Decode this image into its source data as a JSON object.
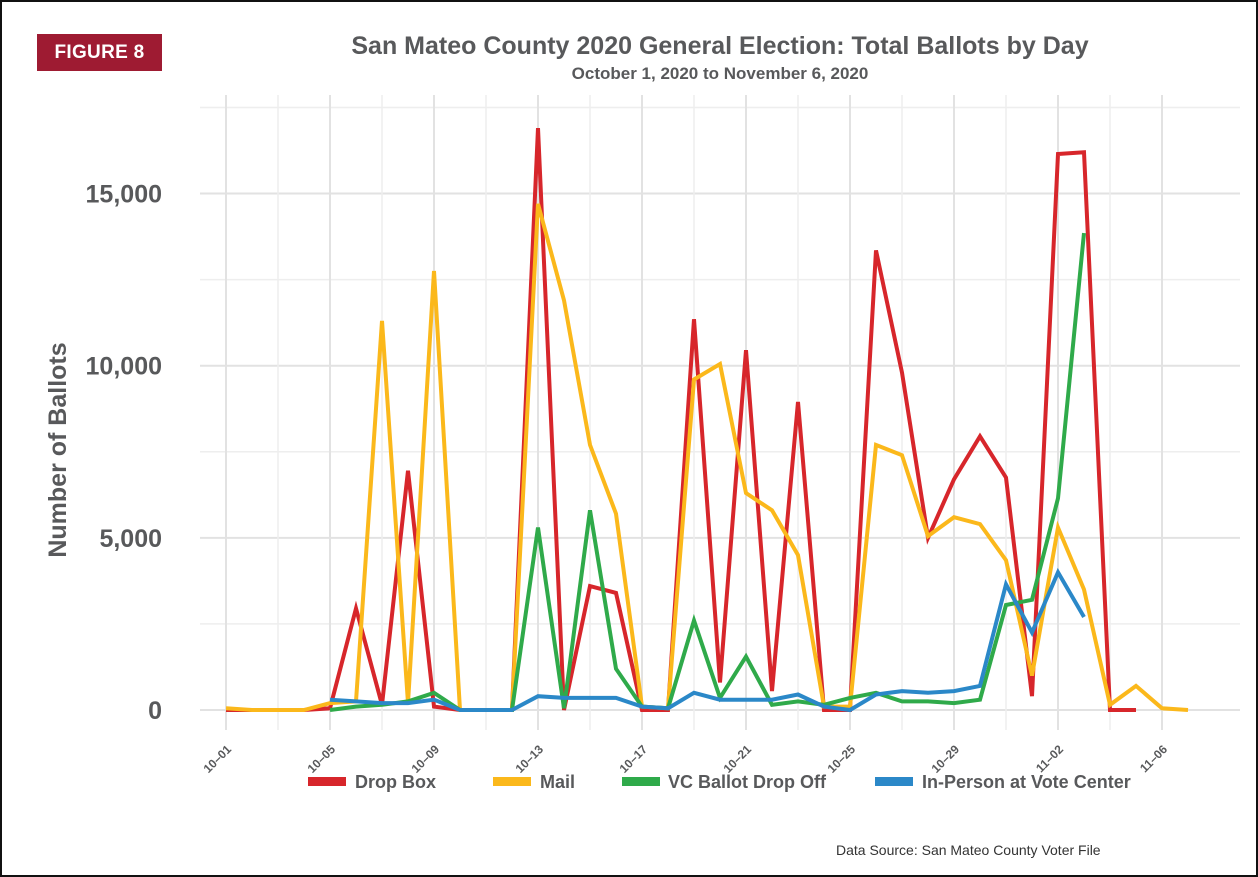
{
  "badge": "FIGURE 8",
  "source": "Data Source: San Mateo County Voter File",
  "chart_data": {
    "type": "line",
    "title": "San Mateo County 2020 General Election: Total Ballots by Day",
    "subtitle": "October 1, 2020 to November 6, 2020",
    "xlabel": "",
    "ylabel": "Number of Ballots",
    "ylim": [
      0,
      17500
    ],
    "yticks": [
      0,
      5000,
      10000,
      15000
    ],
    "ytick_labels": [
      "0",
      "5,000",
      "10,000",
      "15,000"
    ],
    "grid": true,
    "legend_position": "bottom",
    "x": [
      "10-01",
      "10-02",
      "10-03",
      "10-04",
      "10-05",
      "10-06",
      "10-07",
      "10-08",
      "10-09",
      "10-10",
      "10-11",
      "10-12",
      "10-13",
      "10-14",
      "10-15",
      "10-16",
      "10-17",
      "10-18",
      "10-19",
      "10-20",
      "10-21",
      "10-22",
      "10-23",
      "10-24",
      "10-25",
      "10-26",
      "10-27",
      "10-28",
      "10-29",
      "10-30",
      "10-31",
      "11-01",
      "11-02",
      "11-03",
      "11-04",
      "11-05",
      "11-06",
      "11-07"
    ],
    "xtick_indices": [
      0,
      4,
      8,
      12,
      16,
      20,
      24,
      28,
      32,
      36
    ],
    "xtick_labels": [
      "10–01",
      "10–05",
      "10–09",
      "10–13",
      "10–17",
      "10–21",
      "10–25",
      "10–29",
      "11–02",
      "11–06"
    ],
    "series": [
      {
        "name": "Drop Box",
        "color": "#d7262b",
        "values": [
          0,
          0,
          0,
          0,
          50,
          2950,
          150,
          6950,
          100,
          0,
          0,
          0,
          16900,
          0,
          3600,
          3400,
          0,
          0,
          11350,
          800,
          10450,
          550,
          8950,
          0,
          0,
          13350,
          9800,
          5000,
          6700,
          7950,
          6750,
          400,
          16150,
          16200,
          0,
          0,
          null,
          null
        ]
      },
      {
        "name": "Mail",
        "color": "#fbb81b",
        "values": [
          50,
          0,
          0,
          0,
          200,
          250,
          11300,
          200,
          12750,
          0,
          0,
          0,
          14700,
          11900,
          7700,
          5700,
          100,
          50,
          9600,
          10050,
          6300,
          5800,
          4500,
          100,
          100,
          7700,
          7400,
          5050,
          5600,
          5400,
          4350,
          1000,
          5300,
          3500,
          150,
          700,
          50,
          0
        ]
      },
      {
        "name": "VC Ballot Drop Off",
        "color": "#2faa4a",
        "values": [
          null,
          null,
          null,
          null,
          0,
          100,
          150,
          250,
          500,
          0,
          0,
          0,
          5300,
          50,
          5800,
          1200,
          100,
          50,
          2600,
          350,
          1550,
          150,
          250,
          150,
          350,
          500,
          250,
          250,
          200,
          300,
          3050,
          3200,
          6150,
          13850,
          null,
          null,
          null,
          null
        ]
      },
      {
        "name": "In-Person at Vote Center",
        "color": "#2b88c8",
        "values": [
          null,
          null,
          null,
          null,
          300,
          250,
          200,
          200,
          300,
          0,
          0,
          0,
          400,
          350,
          350,
          350,
          100,
          50,
          500,
          300,
          300,
          300,
          450,
          100,
          0,
          450,
          550,
          500,
          550,
          700,
          3650,
          2250,
          4000,
          2700,
          null,
          null,
          null,
          null
        ]
      }
    ]
  }
}
